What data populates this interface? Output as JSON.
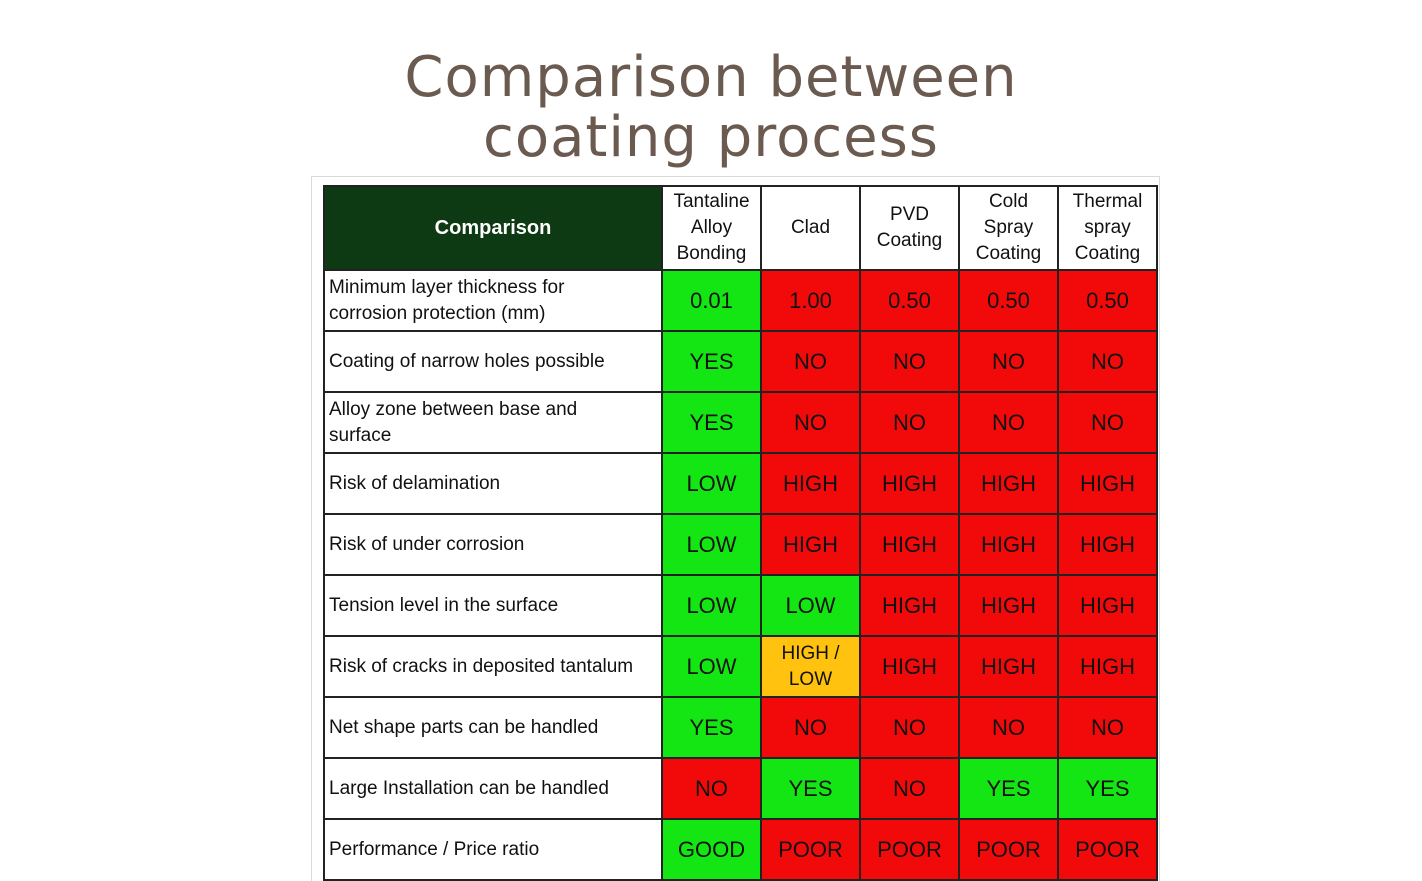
{
  "title": {
    "line1": "Comparison between",
    "line2": "coating process"
  },
  "table": {
    "header": {
      "main": "Comparison",
      "columns": [
        [
          "Tantaline",
          "Alloy",
          "Bonding"
        ],
        [
          "Clad"
        ],
        [
          "PVD",
          "Coating"
        ],
        [
          "Cold",
          "Spray",
          "Coating"
        ],
        [
          "Thermal",
          "spray",
          "Coating"
        ]
      ]
    },
    "rows": [
      {
        "label": [
          "Minimum layer thickness for",
          "corrosion protection (mm)"
        ],
        "values": [
          "0.01",
          "1.00",
          "0.50",
          "0.50",
          "0.50"
        ],
        "colors": [
          "green",
          "red",
          "red",
          "red",
          "red"
        ]
      },
      {
        "label": [
          "Coating of narrow holes possible"
        ],
        "values": [
          "YES",
          "NO",
          "NO",
          "NO",
          "NO"
        ],
        "colors": [
          "green",
          "red",
          "red",
          "red",
          "red"
        ]
      },
      {
        "label": [
          "Alloy zone between base and",
          "surface"
        ],
        "values": [
          "YES",
          "NO",
          "NO",
          "NO",
          "NO"
        ],
        "colors": [
          "green",
          "red",
          "red",
          "red",
          "red"
        ]
      },
      {
        "label": [
          "Risk of delamination"
        ],
        "values": [
          "LOW",
          "HIGH",
          "HIGH",
          "HIGH",
          "HIGH"
        ],
        "colors": [
          "green",
          "red",
          "red",
          "red",
          "red"
        ]
      },
      {
        "label": [
          "Risk of under corrosion"
        ],
        "values": [
          "LOW",
          "HIGH",
          "HIGH",
          "HIGH",
          "HIGH"
        ],
        "colors": [
          "green",
          "red",
          "red",
          "red",
          "red"
        ]
      },
      {
        "label": [
          "Tension level in the surface"
        ],
        "values": [
          "LOW",
          "LOW",
          "HIGH",
          "HIGH",
          "HIGH"
        ],
        "colors": [
          "green",
          "green",
          "red",
          "red",
          "red"
        ]
      },
      {
        "label": [
          "Risk of cracks in deposited tantalum"
        ],
        "values": [
          "LOW",
          "HIGH / LOW",
          "HIGH",
          "HIGH",
          "HIGH"
        ],
        "colors": [
          "green",
          "amber",
          "red",
          "red",
          "red"
        ]
      },
      {
        "label": [
          "Net shape parts can be handled"
        ],
        "values": [
          "YES",
          "NO",
          "NO",
          "NO",
          "NO"
        ],
        "colors": [
          "green",
          "red",
          "red",
          "red",
          "red"
        ]
      },
      {
        "label": [
          "Large Installation can be handled"
        ],
        "values": [
          "NO",
          "YES",
          "NO",
          "YES",
          "YES"
        ],
        "colors": [
          "red",
          "green",
          "red",
          "green",
          "green"
        ]
      },
      {
        "label": [
          "Performance / Price ratio"
        ],
        "values": [
          "GOOD",
          "POOR",
          "POOR",
          "POOR",
          "POOR"
        ],
        "colors": [
          "green",
          "red",
          "red",
          "red",
          "red"
        ]
      }
    ],
    "colors": {
      "green": "#14e614",
      "red": "#f20a0a",
      "amber": "#ffc20e",
      "header_bg": "#0d3a12",
      "title": "#6b5a4f"
    }
  }
}
